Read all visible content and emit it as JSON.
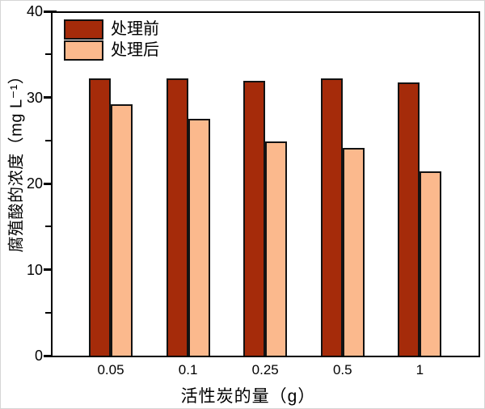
{
  "chart_data": {
    "type": "bar",
    "title": "",
    "categories": [
      "0.05",
      "0.1",
      "0.25",
      "0.5",
      "1"
    ],
    "series": [
      {
        "name": "处理前",
        "color": "#A52B0A",
        "values": [
          32.2,
          32.2,
          31.9,
          32.2,
          31.7
        ]
      },
      {
        "name": "处理后",
        "color": "#FBB98D",
        "values": [
          29.2,
          27.5,
          24.9,
          24.1,
          21.4
        ]
      }
    ],
    "xlabel": "活性炭的量（g）",
    "ylabel": "腐殖酸的浓度（mg L⁻¹）",
    "ylim": [
      0,
      40
    ],
    "y_major_ticks": [
      0,
      10,
      20,
      30,
      40
    ],
    "y_minor_ticks": [
      5,
      15,
      25,
      35
    ],
    "y_tick_labels": [
      "0",
      "10",
      "20",
      "30",
      "40"
    ],
    "grid": false,
    "legend_position": "top-left-inside",
    "bar_outline_color": "#131313",
    "axis_color": "#000000"
  }
}
